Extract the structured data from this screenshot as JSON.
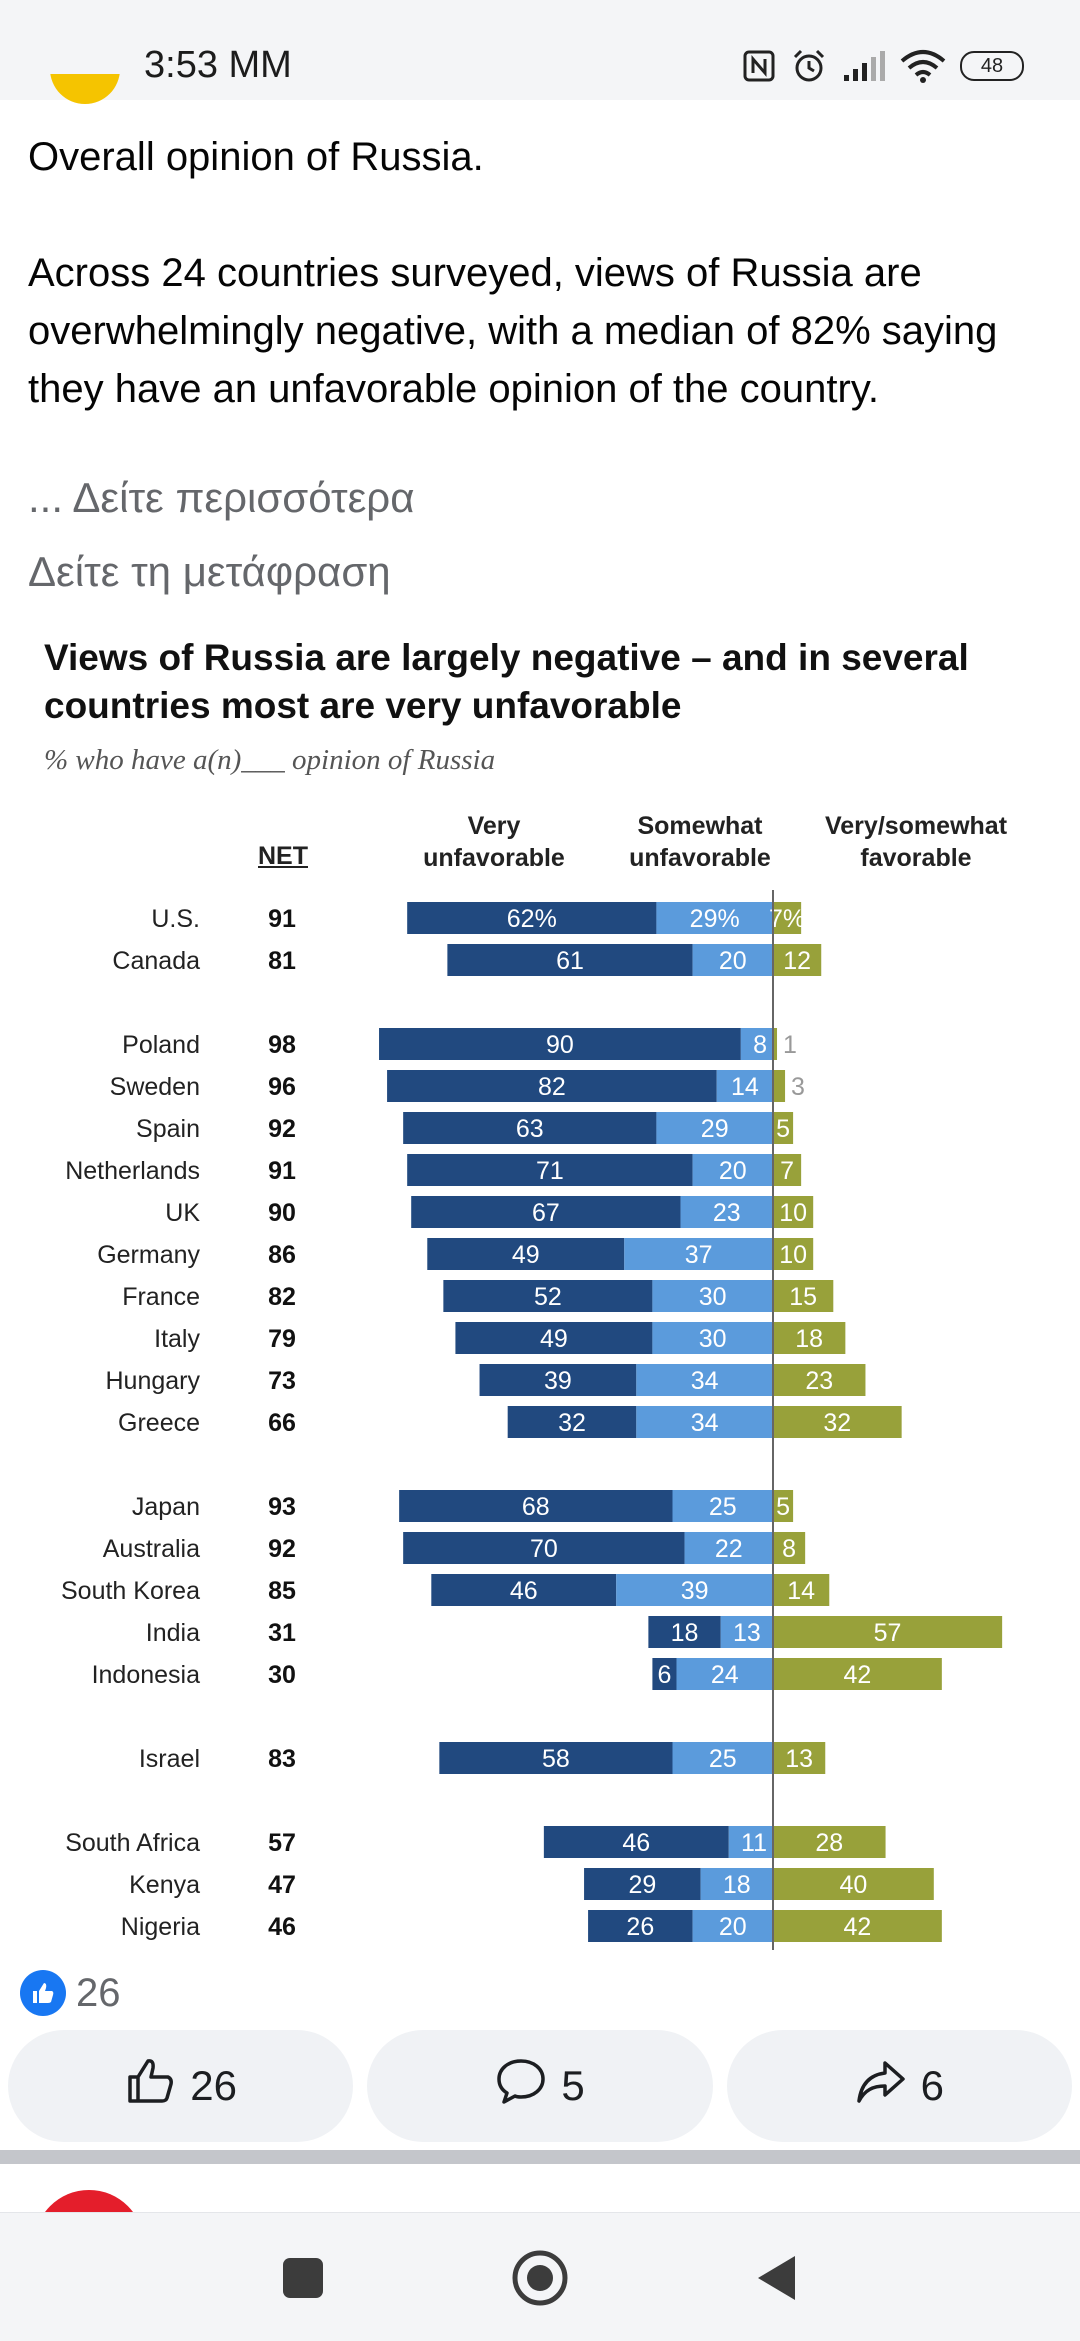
{
  "status_bar": {
    "time": "3:53 MM",
    "battery": "48",
    "icons": [
      "nfc-icon",
      "alarm-icon",
      "signal-icon",
      "wifi-icon",
      "battery-icon"
    ]
  },
  "post": {
    "line1": "Overall opinion of Russia.",
    "line2": "Across 24 countries surveyed, views of Russia are overwhelmingly negative, with a median of 82% saying they have an unfavorable opinion of the country.",
    "see_more": "... Δείτε περισσότερα",
    "see_translation": "Δείτε τη μετάφραση"
  },
  "chart_data": {
    "type": "bar",
    "title": "Views of Russia are largely negative – and in several countries most are very unfavorable",
    "subtitle": "% who have a(n)___ opinion of Russia",
    "net_label": "NET",
    "column_headers": {
      "very_unfav": "Very unfavorable",
      "somewhat_unfav": "Somewhat unfavorable",
      "favorable": "Very/somewhat favorable"
    },
    "colors": {
      "very_unfav": "#21497f",
      "somewhat_unfav": "#5b9bdc",
      "favorable": "#98a13a"
    },
    "groups": [
      [
        {
          "country": "U.S.",
          "net": "91",
          "very": 62,
          "somewhat": 29,
          "fav": 7,
          "very_label": "62%",
          "somewhat_label": "29%",
          "fav_label": "7%"
        },
        {
          "country": "Canada",
          "net": "81",
          "very": 61,
          "somewhat": 20,
          "fav": 12,
          "very_label": "61",
          "somewhat_label": "20",
          "fav_label": "12"
        }
      ],
      [
        {
          "country": "Poland",
          "net": "98",
          "very": 90,
          "somewhat": 8,
          "fav": 1,
          "very_label": "90",
          "somewhat_label": "8",
          "fav_label": "1"
        },
        {
          "country": "Sweden",
          "net": "96",
          "very": 82,
          "somewhat": 14,
          "fav": 3,
          "very_label": "82",
          "somewhat_label": "14",
          "fav_label": "3"
        },
        {
          "country": "Spain",
          "net": "92",
          "very": 63,
          "somewhat": 29,
          "fav": 5,
          "very_label": "63",
          "somewhat_label": "29",
          "fav_label": "5"
        },
        {
          "country": "Netherlands",
          "net": "91",
          "very": 71,
          "somewhat": 20,
          "fav": 7,
          "very_label": "71",
          "somewhat_label": "20",
          "fav_label": "7"
        },
        {
          "country": "UK",
          "net": "90",
          "very": 67,
          "somewhat": 23,
          "fav": 10,
          "very_label": "67",
          "somewhat_label": "23",
          "fav_label": "10"
        },
        {
          "country": "Germany",
          "net": "86",
          "very": 49,
          "somewhat": 37,
          "fav": 10,
          "very_label": "49",
          "somewhat_label": "37",
          "fav_label": "10"
        },
        {
          "country": "France",
          "net": "82",
          "very": 52,
          "somewhat": 30,
          "fav": 15,
          "very_label": "52",
          "somewhat_label": "30",
          "fav_label": "15"
        },
        {
          "country": "Italy",
          "net": "79",
          "very": 49,
          "somewhat": 30,
          "fav": 18,
          "very_label": "49",
          "somewhat_label": "30",
          "fav_label": "18"
        },
        {
          "country": "Hungary",
          "net": "73",
          "very": 39,
          "somewhat": 34,
          "fav": 23,
          "very_label": "39",
          "somewhat_label": "34",
          "fav_label": "23"
        },
        {
          "country": "Greece",
          "net": "66",
          "very": 32,
          "somewhat": 34,
          "fav": 32,
          "very_label": "32",
          "somewhat_label": "34",
          "fav_label": "32"
        }
      ],
      [
        {
          "country": "Japan",
          "net": "93",
          "very": 68,
          "somewhat": 25,
          "fav": 5,
          "very_label": "68",
          "somewhat_label": "25",
          "fav_label": "5"
        },
        {
          "country": "Australia",
          "net": "92",
          "very": 70,
          "somewhat": 22,
          "fav": 8,
          "very_label": "70",
          "somewhat_label": "22",
          "fav_label": "8"
        },
        {
          "country": "South Korea",
          "net": "85",
          "very": 46,
          "somewhat": 39,
          "fav": 14,
          "very_label": "46",
          "somewhat_label": "39",
          "fav_label": "14"
        },
        {
          "country": "India",
          "net": "31",
          "very": 18,
          "somewhat": 13,
          "fav": 57,
          "very_label": "18",
          "somewhat_label": "13",
          "fav_label": "57"
        },
        {
          "country": "Indonesia",
          "net": "30",
          "very": 6,
          "somewhat": 24,
          "fav": 42,
          "very_label": "6",
          "somewhat_label": "24",
          "fav_label": "42"
        }
      ],
      [
        {
          "country": "Israel",
          "net": "83",
          "very": 58,
          "somewhat": 25,
          "fav": 13,
          "very_label": "58",
          "somewhat_label": "25",
          "fav_label": "13"
        }
      ],
      [
        {
          "country": "South Africa",
          "net": "57",
          "very": 46,
          "somewhat": 11,
          "fav": 28,
          "very_label": "46",
          "somewhat_label": "11",
          "fav_label": "28"
        },
        {
          "country": "Kenya",
          "net": "47",
          "very": 29,
          "somewhat": 18,
          "fav": 40,
          "very_label": "29",
          "somewhat_label": "18",
          "fav_label": "40"
        },
        {
          "country": "Nigeria",
          "net": "46",
          "very": 26,
          "somewhat": 20,
          "fav": 42,
          "very_label": "26",
          "somewhat_label": "20",
          "fav_label": "42"
        }
      ]
    ]
  },
  "reactions": {
    "count": "26"
  },
  "actions": {
    "like": "26",
    "comment": "5",
    "share": "6"
  },
  "nav": {
    "buttons": [
      "recents-button",
      "home-button",
      "back-button"
    ]
  }
}
